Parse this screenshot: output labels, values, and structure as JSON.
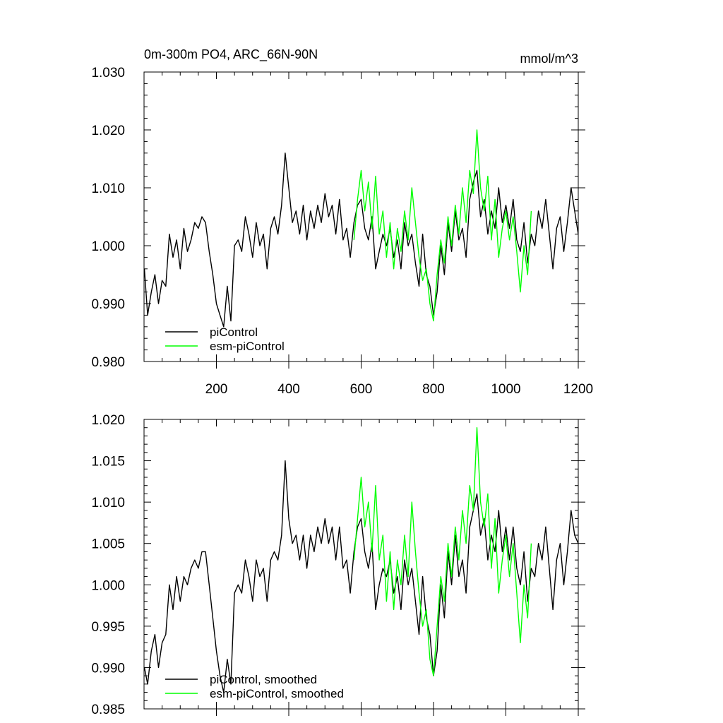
{
  "chart_data": [
    {
      "type": "line",
      "title": "0m-300m PO4, ARC_66N-90N",
      "units": "mmol/m^3",
      "xlim": [
        0,
        1200
      ],
      "ylim": [
        0.98,
        1.03
      ],
      "x_ticks": [
        200,
        400,
        600,
        800,
        1000,
        1200
      ],
      "y_ticks": [
        "0.980",
        "0.990",
        "1.000",
        "1.010",
        "1.020",
        "1.030"
      ],
      "legend_position": "bottom-left",
      "grid": false,
      "series": [
        {
          "name": "piControl",
          "color": "#000000",
          "x": [
            1,
            10,
            20,
            30,
            40,
            50,
            60,
            70,
            80,
            90,
            100,
            110,
            120,
            130,
            140,
            150,
            160,
            170,
            180,
            190,
            200,
            210,
            220,
            230,
            240,
            250,
            260,
            270,
            280,
            290,
            300,
            310,
            320,
            330,
            340,
            350,
            360,
            370,
            380,
            390,
            400,
            410,
            420,
            430,
            440,
            450,
            460,
            470,
            480,
            490,
            500,
            510,
            520,
            530,
            540,
            550,
            560,
            570,
            580,
            590,
            600,
            610,
            620,
            630,
            640,
            650,
            660,
            670,
            680,
            690,
            700,
            710,
            720,
            730,
            740,
            750,
            760,
            770,
            780,
            790,
            800,
            810,
            820,
            830,
            840,
            850,
            860,
            870,
            880,
            890,
            900,
            910,
            920,
            930,
            940,
            950,
            960,
            970,
            980,
            990,
            1000,
            1010,
            1020,
            1030,
            1040,
            1050,
            1060,
            1070,
            1080,
            1090,
            1100,
            1110,
            1120,
            1130,
            1140,
            1150,
            1160,
            1170,
            1180,
            1190,
            1200
          ],
          "y": [
            0.996,
            0.988,
            0.992,
            0.995,
            0.99,
            0.994,
            0.993,
            1.002,
            0.998,
            1.001,
            0.996,
            1.003,
            0.999,
            1.001,
            1.004,
            1.003,
            1.005,
            1.004,
            0.999,
            0.995,
            0.99,
            0.988,
            0.986,
            0.993,
            0.987,
            1.0,
            1.001,
            0.999,
            1.005,
            1.002,
            0.998,
            1.004,
            1.0,
            1.002,
            0.996,
            1.003,
            1.005,
            1.002,
            1.007,
            1.016,
            1.01,
            1.004,
            1.006,
            1.002,
            1.007,
            1.001,
            1.006,
            1.003,
            1.007,
            1.004,
            1.009,
            1.005,
            1.007,
            1.002,
            1.008,
            1.001,
            1.003,
            0.998,
            1.004,
            1.007,
            1.008,
            1.003,
            1.001,
            1.005,
            0.996,
            0.999,
            1.002,
            1.0,
            1.003,
            0.998,
            1.001,
            0.996,
            1.004,
            1.0,
            1.002,
            0.997,
            0.993,
            1.002,
            0.995,
            0.993,
            0.988,
            0.992,
            1.0,
            0.995,
            1.004,
            0.999,
            1.006,
            1.001,
            1.003,
            0.998,
            1.008,
            1.011,
            1.013,
            1.005,
            1.008,
            1.002,
            1.006,
            1.003,
            1.01,
            1.004,
            1.007,
            1.003,
            1.008,
            1.001,
            0.999,
            1.004,
            0.997,
            1.002,
            1.0,
            1.006,
            1.003,
            1.008,
            1.002,
            0.996,
            1.003,
            1.005,
            0.999,
            1.004,
            1.01,
            1.006,
            1.002
          ]
        },
        {
          "name": "esm-piControl",
          "color": "#00ff00",
          "x": [
            580,
            590,
            600,
            610,
            620,
            630,
            640,
            650,
            660,
            670,
            680,
            690,
            700,
            710,
            720,
            730,
            740,
            750,
            760,
            770,
            780,
            790,
            800,
            810,
            820,
            830,
            840,
            850,
            860,
            870,
            880,
            890,
            900,
            910,
            920,
            930,
            940,
            950,
            960,
            970,
            980,
            990,
            1000,
            1010,
            1020,
            1030,
            1040,
            1050,
            1060,
            1070
          ],
          "y": [
            1.001,
            1.008,
            1.013,
            1.006,
            1.011,
            1.003,
            1.012,
            1.002,
            1.006,
            0.998,
            1.004,
            0.996,
            1.003,
            0.999,
            1.006,
            1.001,
            1.01,
            1.004,
            0.998,
            0.994,
            0.996,
            0.99,
            0.987,
            0.995,
            1.001,
            0.997,
            1.005,
            1.0,
            1.007,
            1.002,
            1.01,
            1.004,
            1.013,
            1.009,
            1.02,
            1.01,
            1.006,
            1.012,
            1.001,
            1.008,
            0.998,
            1.003,
            1.006,
            1.001,
            1.005,
            0.999,
            0.992,
            1.0,
            0.995,
            1.006
          ]
        }
      ]
    },
    {
      "type": "line",
      "xlim": [
        0,
        1200
      ],
      "ylim": [
        0.985,
        1.02
      ],
      "x_ticks": [
        200,
        400,
        600,
        800,
        1000,
        1200
      ],
      "y_ticks": [
        "0.985",
        "0.990",
        "0.995",
        "1.000",
        "1.005",
        "1.010",
        "1.015",
        "1.020"
      ],
      "legend_position": "bottom-left",
      "grid": false,
      "series": [
        {
          "name": "piControl, smoothed",
          "color": "#000000",
          "x": [
            1,
            10,
            20,
            30,
            40,
            50,
            60,
            70,
            80,
            90,
            100,
            110,
            120,
            130,
            140,
            150,
            160,
            170,
            180,
            190,
            200,
            210,
            220,
            230,
            240,
            250,
            260,
            270,
            280,
            290,
            300,
            310,
            320,
            330,
            340,
            350,
            360,
            370,
            380,
            390,
            400,
            410,
            420,
            430,
            440,
            450,
            460,
            470,
            480,
            490,
            500,
            510,
            520,
            530,
            540,
            550,
            560,
            570,
            580,
            590,
            600,
            610,
            620,
            630,
            640,
            650,
            660,
            670,
            680,
            690,
            700,
            710,
            720,
            730,
            740,
            750,
            760,
            770,
            780,
            790,
            800,
            810,
            820,
            830,
            840,
            850,
            860,
            870,
            880,
            890,
            900,
            910,
            920,
            930,
            940,
            950,
            960,
            970,
            980,
            990,
            1000,
            1010,
            1020,
            1030,
            1040,
            1050,
            1060,
            1070,
            1080,
            1090,
            1100,
            1110,
            1120,
            1130,
            1140,
            1150,
            1160,
            1170,
            1180,
            1190,
            1200
          ],
          "y": [
            0.99,
            0.988,
            0.992,
            0.994,
            0.99,
            0.993,
            0.994,
            1.0,
            0.997,
            1.001,
            0.998,
            1.001,
            1.0,
            1.002,
            1.003,
            1.002,
            1.004,
            1.004,
            1.0,
            0.996,
            0.992,
            0.989,
            0.987,
            0.991,
            0.988,
            0.999,
            1.0,
            0.999,
            1.003,
            1.001,
            0.998,
            1.003,
            1.001,
            1.002,
            0.998,
            1.003,
            1.004,
            1.003,
            1.006,
            1.015,
            1.008,
            1.005,
            1.006,
            1.003,
            1.006,
            1.002,
            1.006,
            1.004,
            1.007,
            1.005,
            1.008,
            1.005,
            1.007,
            1.003,
            1.007,
            1.002,
            1.003,
            0.999,
            1.004,
            1.007,
            1.008,
            1.004,
            1.002,
            1.005,
            0.997,
            1.0,
            1.002,
            1.001,
            1.003,
            0.999,
            1.001,
            0.997,
            1.003,
            1.0,
            1.002,
            0.998,
            0.994,
            1.001,
            0.996,
            0.994,
            0.989,
            0.992,
            1.0,
            0.996,
            1.004,
            1.0,
            1.006,
            1.001,
            1.003,
            0.999,
            1.007,
            1.009,
            1.011,
            1.006,
            1.008,
            1.003,
            1.006,
            1.004,
            1.009,
            1.004,
            1.007,
            1.003,
            1.007,
            1.002,
            1.0,
            1.004,
            0.998,
            1.002,
            1.001,
            1.005,
            1.003,
            1.007,
            1.002,
            0.997,
            1.003,
            1.005,
            1.0,
            1.004,
            1.009,
            1.006,
            1.005
          ]
        },
        {
          "name": "esm-piControl, smoothed",
          "color": "#00ff00",
          "x": [
            580,
            590,
            600,
            610,
            620,
            630,
            640,
            650,
            660,
            670,
            680,
            690,
            700,
            710,
            720,
            730,
            740,
            750,
            760,
            770,
            780,
            790,
            800,
            810,
            820,
            830,
            840,
            850,
            860,
            870,
            880,
            890,
            900,
            910,
            920,
            930,
            940,
            950,
            960,
            970,
            980,
            990,
            1000,
            1010,
            1020,
            1030,
            1040,
            1050,
            1060,
            1070
          ],
          "y": [
            1.003,
            1.008,
            1.013,
            1.007,
            1.01,
            1.004,
            1.012,
            1.003,
            1.006,
            0.998,
            1.004,
            0.997,
            1.003,
            1.0,
            1.006,
            1.001,
            1.01,
            1.004,
            0.999,
            0.995,
            0.997,
            0.991,
            0.989,
            0.995,
            1.001,
            0.998,
            1.005,
            1.001,
            1.007,
            1.003,
            1.009,
            1.005,
            1.012,
            1.009,
            1.019,
            1.01,
            1.007,
            1.011,
            1.002,
            1.008,
            0.999,
            1.003,
            1.006,
            1.001,
            1.005,
            0.999,
            0.993,
            1.0,
            0.996,
            1.005
          ]
        }
      ]
    }
  ]
}
